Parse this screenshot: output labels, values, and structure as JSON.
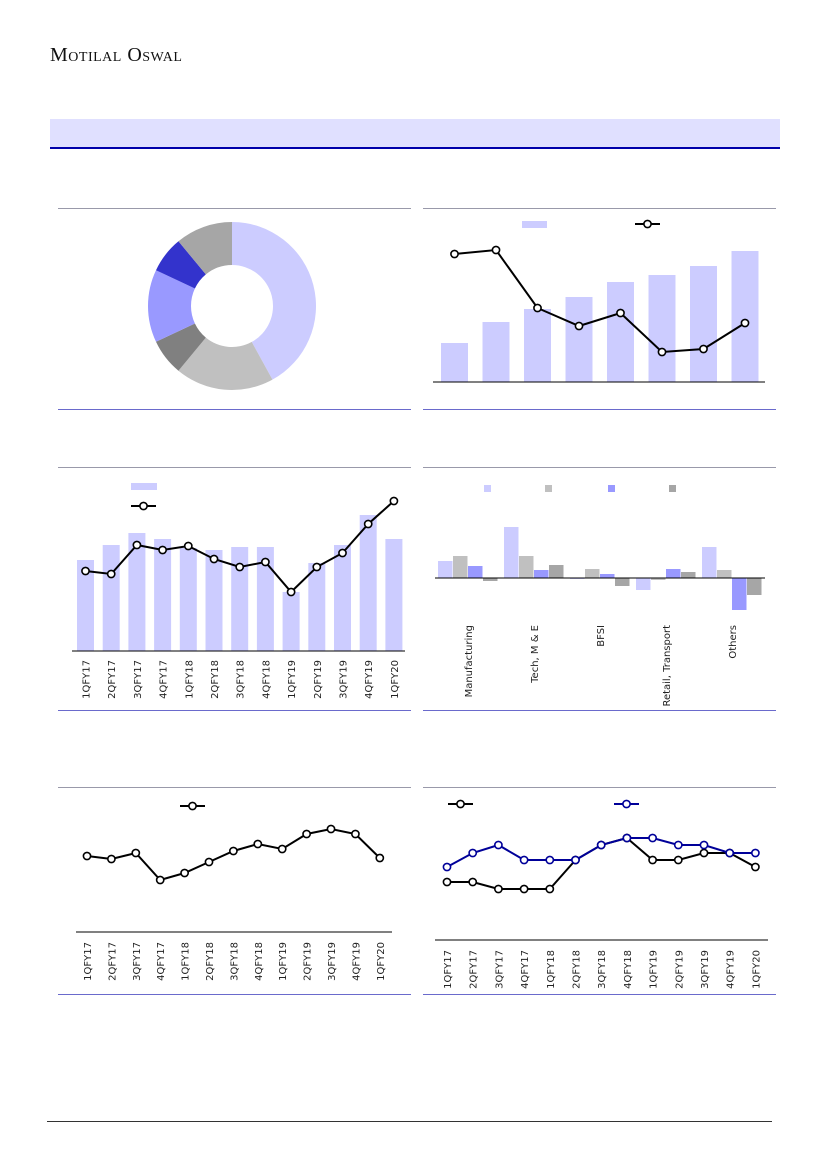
{
  "header": {
    "logo": "Motilal Oswal"
  },
  "colors": {
    "light": "#ccccff",
    "gray": "#c0c0c0",
    "periwinkle": "#9999ff",
    "darkgray": "#a6a6a6",
    "blue": "#3333cc",
    "navy": "#000099",
    "band": "#e0e0ff"
  },
  "chart_data": [
    {
      "type": "pie",
      "name": "donut",
      "values": [
        42,
        19,
        7,
        14,
        7,
        11
      ],
      "colors": [
        "#ccccff",
        "#c0c0c0",
        "#808080",
        "#9999ff",
        "#3333cc",
        "#a6a6a6"
      ]
    },
    {
      "type": "bar",
      "name": "bars-line-8",
      "bars": [
        39,
        60,
        73,
        85,
        100,
        107,
        116,
        131
      ],
      "line": [
        128,
        132,
        74,
        56,
        69,
        30,
        33,
        59
      ]
    },
    {
      "type": "bar",
      "name": "bars-line-quarterly",
      "categories": [
        "1QFY17",
        "2QFY17",
        "3QFY17",
        "4QFY17",
        "1QFY18",
        "2QFY18",
        "3QFY18",
        "4QFY18",
        "1QFY19",
        "2QFY19",
        "3QFY19",
        "4QFY19",
        "1QFY20"
      ],
      "bars": [
        91,
        106,
        118,
        112,
        103,
        101,
        104,
        104,
        59,
        88,
        106,
        136,
        112
      ],
      "line": [
        80,
        77,
        106,
        101,
        105,
        92,
        84,
        89,
        59,
        84,
        98,
        127,
        150
      ]
    },
    {
      "type": "bar",
      "name": "grouped-sector",
      "categories": [
        "Manufacturing",
        "Tech, M & E",
        "BFSI",
        "Retail, Transport",
        "Others"
      ],
      "series": [
        {
          "color": "#ccccff",
          "values": [
            17,
            51,
            -1,
            -12,
            31
          ]
        },
        {
          "color": "#c0c0c0",
          "values": [
            22,
            22,
            9,
            -2,
            8
          ]
        },
        {
          "color": "#9999ff",
          "values": [
            12,
            8,
            4,
            9,
            -32
          ]
        },
        {
          "color": "#a6a6a6",
          "values": [
            -3,
            13,
            -8,
            6,
            -17
          ]
        }
      ]
    },
    {
      "type": "line",
      "name": "line-quarterly",
      "categories": [
        "1QFY17",
        "2QFY17",
        "3QFY17",
        "4QFY17",
        "1QFY18",
        "2QFY18",
        "3QFY18",
        "4QFY18",
        "1QFY19",
        "2QFY19",
        "3QFY19",
        "4QFY19",
        "1QFY20"
      ],
      "values": [
        76,
        73,
        79,
        52,
        59,
        70,
        81,
        88,
        83,
        98,
        103,
        98,
        74
      ]
    },
    {
      "type": "line",
      "name": "two-lines-quarterly",
      "categories": [
        "1QFY17",
        "2QFY17",
        "3QFY17",
        "4QFY17",
        "1QFY18",
        "2QFY18",
        "3QFY18",
        "4QFY18",
        "1QFY19",
        "2QFY19",
        "3QFY19",
        "4QFY19",
        "1QFY20"
      ],
      "series": [
        {
          "color": "#000000",
          "values": [
            58,
            58,
            51,
            51,
            51,
            80,
            95,
            102,
            80,
            80,
            87,
            87,
            73
          ]
        },
        {
          "color": "#000099",
          "values": [
            73,
            87,
            95,
            80,
            80,
            80,
            95,
            102,
            102,
            95,
            95,
            87,
            87
          ]
        }
      ]
    }
  ]
}
